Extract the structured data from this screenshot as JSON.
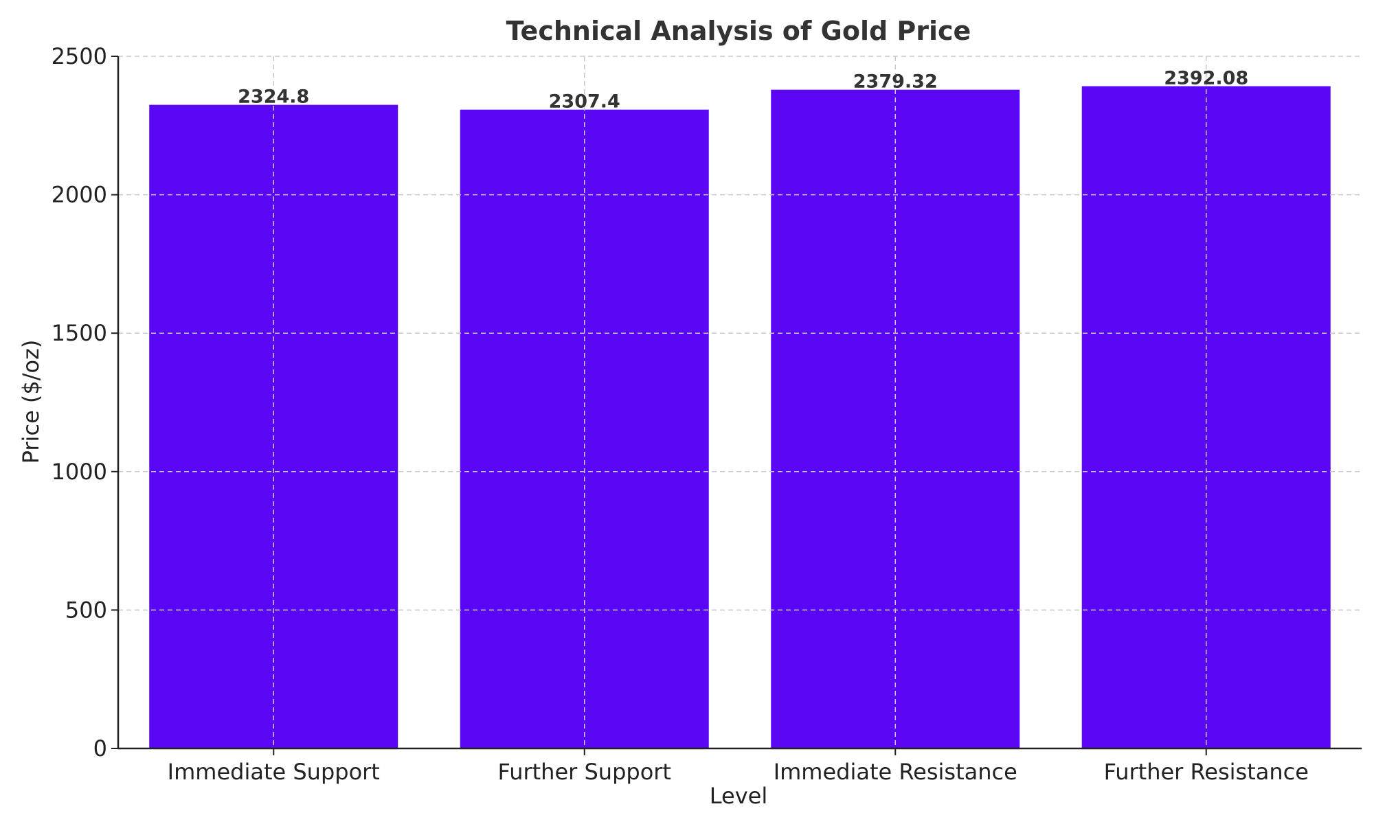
{
  "chart_data": {
    "type": "bar",
    "title": "Technical Analysis of Gold Price",
    "xlabel": "Level",
    "ylabel": "Price ($/oz)",
    "categories": [
      "Immediate Support",
      "Further Support",
      "Immediate Resistance",
      "Further Resistance"
    ],
    "values": [
      2324.8,
      2307.4,
      2379.32,
      2392.08
    ],
    "data_labels": [
      "2324.8",
      "2307.4",
      "2379.32",
      "2392.08"
    ],
    "ylim": [
      0,
      2500
    ],
    "yticks": [
      0,
      500,
      1000,
      1500,
      2000,
      2500
    ],
    "ytick_labels": [
      "0",
      "500",
      "1000",
      "1500",
      "2000",
      "2500"
    ],
    "grid": true,
    "bar_color": "#5a07f5",
    "legend": "none"
  }
}
